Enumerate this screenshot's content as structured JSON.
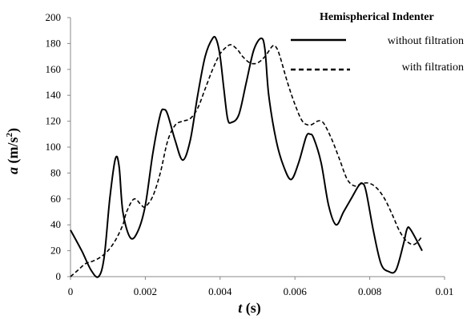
{
  "chart_data": {
    "type": "line",
    "xlabel": {
      "symbol": "t",
      "unit": " (s)"
    },
    "ylabel": {
      "symbol": "a",
      "unit_pre": " (m/s",
      "unit_sup": "2",
      "unit_post": ")"
    },
    "xlim": [
      0,
      0.01
    ],
    "ylim": [
      0,
      200
    ],
    "x_ticks": [
      "0",
      "0.002",
      "0.004",
      "0.006",
      "0.008",
      "0.01"
    ],
    "y_ticks": [
      "0",
      "20",
      "40",
      "60",
      "80",
      "100",
      "120",
      "140",
      "160",
      "180",
      "200"
    ],
    "grid": false,
    "legend": {
      "title": "Hemispherical Indenter",
      "position": "top-right"
    },
    "series": [
      {
        "name": "without filtration",
        "style": "solid",
        "color": "#000000",
        "x": [
          0,
          0.0003,
          0.00055,
          0.00075,
          0.0009,
          0.00105,
          0.0012,
          0.0013,
          0.0014,
          0.0016,
          0.0018,
          0.002,
          0.0022,
          0.0024,
          0.0025,
          0.0026,
          0.0028,
          0.003,
          0.0032,
          0.0034,
          0.0036,
          0.0038,
          0.0039,
          0.004,
          0.0041,
          0.0042,
          0.0043,
          0.0045,
          0.0047,
          0.0049,
          0.0051,
          0.0052,
          0.0053,
          0.0055,
          0.0057,
          0.0059,
          0.0061,
          0.0063,
          0.0064,
          0.0065,
          0.0067,
          0.0069,
          0.0071,
          0.0073,
          0.0075,
          0.0077,
          0.0078,
          0.0079,
          0.0081,
          0.0083,
          0.0085,
          0.0087,
          0.0089,
          0.009,
          0.0091,
          0.0094
        ],
        "values": [
          36,
          20,
          5,
          0,
          15,
          60,
          91,
          85,
          50,
          30,
          35,
          55,
          95,
          125,
          129,
          125,
          105,
          90,
          105,
          140,
          170,
          184,
          183,
          170,
          145,
          122,
          119,
          125,
          150,
          175,
          184,
          175,
          140,
          105,
          85,
          75,
          88,
          108,
          110,
          107,
          88,
          55,
          40,
          50,
          60,
          70,
          72,
          66,
          35,
          10,
          4,
          5,
          25,
          37,
          36,
          20
        ]
      },
      {
        "name": "with filtration",
        "style": "dashed",
        "color": "#000000",
        "x": [
          0,
          0.0002,
          0.0004,
          0.0006,
          0.0008,
          0.001,
          0.0012,
          0.0014,
          0.0015,
          0.0017,
          0.0019,
          0.002,
          0.0022,
          0.0024,
          0.0026,
          0.0028,
          0.003,
          0.0032,
          0.0034,
          0.0036,
          0.0038,
          0.004,
          0.0042,
          0.0043,
          0.0044,
          0.0045,
          0.0046,
          0.0048,
          0.005,
          0.0052,
          0.0054,
          0.0055,
          0.0056,
          0.0058,
          0.006,
          0.0062,
          0.0064,
          0.0066,
          0.0067,
          0.0068,
          0.007,
          0.0072,
          0.0074,
          0.0076,
          0.0078,
          0.008,
          0.0082,
          0.0084,
          0.0086,
          0.0088,
          0.009,
          0.0092,
          0.0094
        ],
        "values": [
          0,
          5,
          10,
          12,
          15,
          20,
          28,
          40,
          50,
          60,
          55,
          54,
          62,
          80,
          105,
          117,
          120,
          122,
          130,
          145,
          160,
          172,
          178,
          179,
          177,
          174,
          170,
          165,
          165,
          170,
          178,
          177,
          170,
          150,
          133,
          120,
          117,
          120,
          120,
          117,
          105,
          90,
          75,
          70,
          72,
          72,
          68,
          60,
          48,
          35,
          27,
          25,
          31
        ]
      }
    ]
  }
}
